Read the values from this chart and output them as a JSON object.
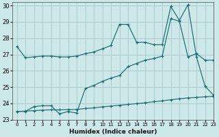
{
  "xlabel": "Humidex (Indice chaleur)",
  "bg_color": "#cce8e8",
  "grid_color": "#aacccc",
  "line_color": "#1a6b6b",
  "xlim": [
    -0.5,
    23
  ],
  "ylim": [
    23,
    30.2
  ],
  "yticks": [
    23,
    24,
    25,
    26,
    27,
    28,
    29,
    30
  ],
  "xticks": [
    0,
    1,
    2,
    3,
    4,
    5,
    6,
    7,
    8,
    9,
    10,
    11,
    12,
    13,
    14,
    15,
    16,
    17,
    18,
    19,
    20,
    21,
    22,
    23
  ],
  "line1_x": [
    0,
    1,
    2,
    3,
    4,
    5,
    6,
    7,
    8,
    9,
    10,
    11,
    12,
    13,
    14,
    15,
    16,
    17,
    18,
    19,
    20,
    21,
    22,
    23
  ],
  "line1_y": [
    27.5,
    26.8,
    26.85,
    26.9,
    26.9,
    26.85,
    26.85,
    26.9,
    27.05,
    27.15,
    27.35,
    27.55,
    28.85,
    28.85,
    27.75,
    27.75,
    27.6,
    27.6,
    29.95,
    29.1,
    30.05,
    26.85,
    25.05,
    24.5
  ],
  "line2_x": [
    0,
    1,
    2,
    3,
    4,
    5,
    6,
    7,
    8,
    9,
    10,
    11,
    12,
    13,
    14,
    15,
    16,
    17,
    18,
    19,
    20,
    21,
    22,
    23
  ],
  "line2_y": [
    23.5,
    23.5,
    23.8,
    23.85,
    23.85,
    23.35,
    23.5,
    23.4,
    24.9,
    25.1,
    25.35,
    25.55,
    25.7,
    26.25,
    26.45,
    26.65,
    26.75,
    26.9,
    29.2,
    29.05,
    26.85,
    27.05,
    26.65,
    26.65
  ],
  "line3_x": [
    0,
    1,
    2,
    3,
    4,
    5,
    6,
    7,
    8,
    9,
    10,
    11,
    12,
    13,
    14,
    15,
    16,
    17,
    18,
    19,
    20,
    21,
    22,
    23
  ],
  "line3_y": [
    23.5,
    23.52,
    23.55,
    23.58,
    23.6,
    23.6,
    23.62,
    23.62,
    23.68,
    23.72,
    23.78,
    23.83,
    23.88,
    23.93,
    23.98,
    24.03,
    24.1,
    24.15,
    24.22,
    24.28,
    24.33,
    24.36,
    24.4,
    24.43
  ]
}
